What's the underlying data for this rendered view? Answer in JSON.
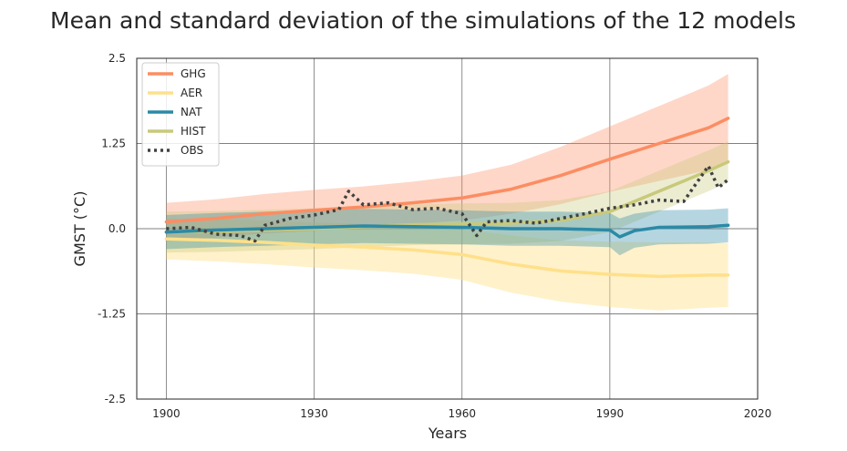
{
  "chart_data": {
    "type": "line",
    "title": "Mean and standard deviation of the simulations of the 12 models",
    "xlabel": "Years",
    "ylabel": "GMST (°C)",
    "xlim": [
      1894,
      2020
    ],
    "ylim": [
      -2.5,
      2.5
    ],
    "x_ticks": [
      1900,
      1930,
      1960,
      1990,
      2020
    ],
    "x_tick_labels": [
      "1900",
      "1930",
      "1960",
      "1990",
      "2020"
    ],
    "y_ticks": [
      2.5,
      1.25,
      0.0,
      -1.25,
      -2.5
    ],
    "y_tick_labels": [
      "2.5",
      "1.25",
      "0.0",
      "-1.25",
      "-2.5"
    ],
    "grid": true,
    "legend_position": "top-left",
    "series": [
      {
        "name": "GHG",
        "color": "#fc8d62",
        "style": "solid",
        "band": true,
        "band_opacity": 0.35,
        "x": [
          1900,
          1910,
          1920,
          1930,
          1940,
          1950,
          1960,
          1970,
          1980,
          1990,
          2000,
          2010,
          2014
        ],
        "values": [
          0.1,
          0.15,
          0.22,
          0.27,
          0.32,
          0.38,
          0.45,
          0.58,
          0.78,
          1.02,
          1.25,
          1.48,
          1.62
        ],
        "std": [
          0.28,
          0.28,
          0.29,
          0.3,
          0.3,
          0.31,
          0.33,
          0.36,
          0.42,
          0.48,
          0.55,
          0.62,
          0.65
        ]
      },
      {
        "name": "AER",
        "color": "#ffe08a",
        "style": "solid",
        "band": true,
        "band_opacity": 0.45,
        "x": [
          1900,
          1910,
          1920,
          1930,
          1940,
          1950,
          1960,
          1970,
          1980,
          1990,
          2000,
          2010,
          2014
        ],
        "values": [
          -0.15,
          -0.17,
          -0.2,
          -0.24,
          -0.27,
          -0.31,
          -0.38,
          -0.52,
          -0.62,
          -0.67,
          -0.7,
          -0.68,
          -0.68
        ],
        "std": [
          0.3,
          0.31,
          0.32,
          0.33,
          0.34,
          0.35,
          0.37,
          0.42,
          0.45,
          0.48,
          0.5,
          0.48,
          0.47
        ]
      },
      {
        "name": "NAT",
        "color": "#2b8aa6",
        "style": "solid",
        "band": true,
        "band_opacity": 0.35,
        "x": [
          1900,
          1910,
          1920,
          1930,
          1940,
          1950,
          1960,
          1970,
          1980,
          1990,
          1992,
          1995,
          2000,
          2010,
          2014
        ],
        "values": [
          -0.05,
          -0.02,
          0.0,
          0.02,
          0.04,
          0.03,
          0.02,
          0.0,
          0.0,
          -0.02,
          -0.12,
          -0.03,
          0.02,
          0.03,
          0.05
        ],
        "std": [
          0.25,
          0.25,
          0.25,
          0.25,
          0.25,
          0.25,
          0.25,
          0.25,
          0.25,
          0.25,
          0.27,
          0.25,
          0.25,
          0.25,
          0.25
        ]
      },
      {
        "name": "HIST",
        "color": "#c8c97a",
        "style": "solid",
        "band": true,
        "band_opacity": 0.35,
        "x": [
          1900,
          1910,
          1920,
          1930,
          1940,
          1950,
          1960,
          1970,
          1980,
          1990,
          2000,
          2010,
          2014
        ],
        "values": [
          -0.05,
          -0.04,
          -0.02,
          0.0,
          0.03,
          0.06,
          0.07,
          0.08,
          0.12,
          0.25,
          0.55,
          0.85,
          0.98
        ],
        "std": [
          0.3,
          0.3,
          0.3,
          0.3,
          0.3,
          0.3,
          0.3,
          0.3,
          0.3,
          0.3,
          0.3,
          0.3,
          0.3
        ]
      },
      {
        "name": "OBS",
        "color": "#404040",
        "style": "dotted",
        "band": false,
        "x": [
          1900,
          1905,
          1910,
          1915,
          1918,
          1920,
          1925,
          1930,
          1935,
          1937,
          1940,
          1945,
          1950,
          1955,
          1960,
          1963,
          1965,
          1970,
          1975,
          1980,
          1985,
          1990,
          1995,
          2000,
          2005,
          2010,
          2012,
          2014
        ],
        "values": [
          0.0,
          0.02,
          -0.08,
          -0.1,
          -0.18,
          0.05,
          0.15,
          0.2,
          0.28,
          0.55,
          0.35,
          0.38,
          0.28,
          0.3,
          0.22,
          -0.1,
          0.1,
          0.12,
          0.08,
          0.15,
          0.22,
          0.3,
          0.35,
          0.42,
          0.4,
          0.92,
          0.6,
          0.72
        ]
      }
    ]
  }
}
